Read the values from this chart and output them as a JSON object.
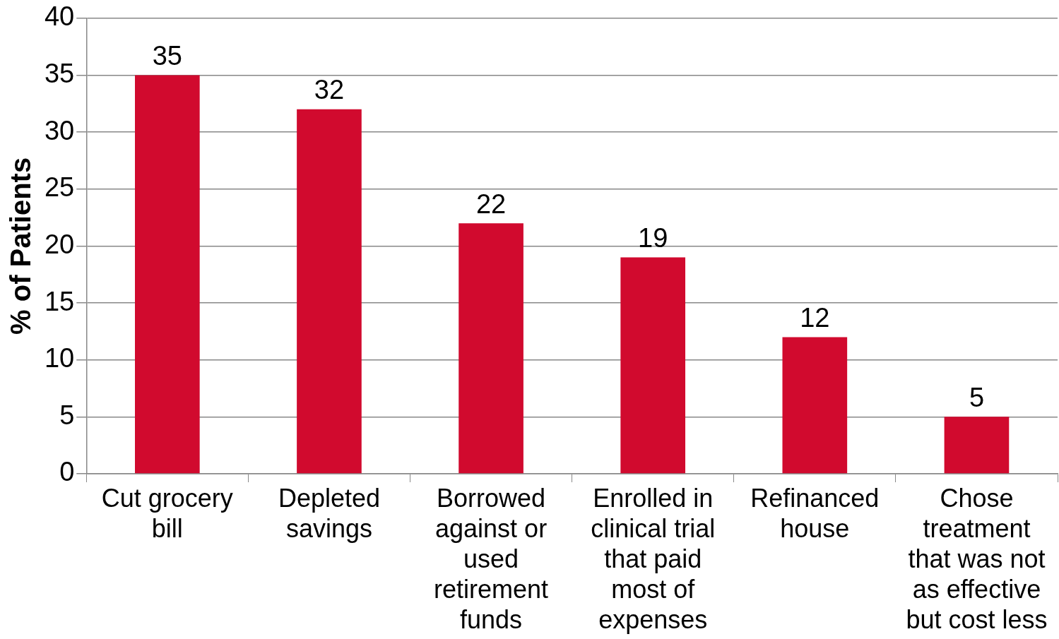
{
  "chart_data": {
    "type": "bar",
    "ylabel": "% of Patients",
    "categories": [
      "Cut grocery bill",
      "Depleted savings",
      "Borrowed against or used retirement funds",
      "Enrolled in clinical trial that paid most of expenses",
      "Refinanced house",
      "Chose treatment that was not as effective but cost less"
    ],
    "values": [
      35,
      32,
      22,
      19,
      12,
      5
    ],
    "color": "#d10a2e",
    "ylim": [
      0,
      40
    ],
    "yticks": [
      0,
      5,
      10,
      15,
      20,
      25,
      30,
      35,
      40
    ],
    "grid": "y",
    "legend": false,
    "data_labels": true
  }
}
